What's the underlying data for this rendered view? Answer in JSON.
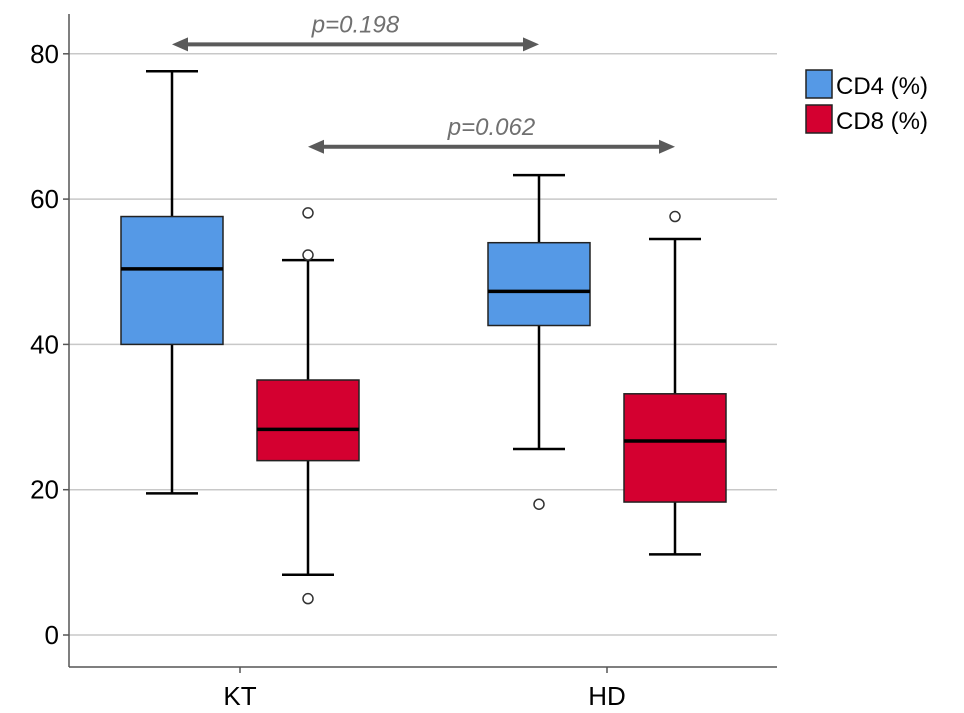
{
  "chart_data": {
    "type": "box",
    "categories": [
      "KT",
      "HD"
    ],
    "ylim": [
      -4,
      86
    ],
    "yticks": [
      0,
      20,
      40,
      60,
      80
    ],
    "grid": true,
    "legend_position": "top-right",
    "series": [
      {
        "name": "CD4 (%)",
        "color": "#5599e6",
        "boxes": [
          {
            "category": "KT",
            "whisker_low": 19.5,
            "q1": 40.0,
            "median": 50.4,
            "q3": 57.6,
            "whisker_high": 77.6,
            "outliers": []
          },
          {
            "category": "HD",
            "whisker_low": 25.6,
            "q1": 42.6,
            "median": 47.3,
            "q3": 54.0,
            "whisker_high": 63.3,
            "outliers": [
              18.0
            ]
          }
        ]
      },
      {
        "name": "CD8 (%)",
        "color": "#d40030",
        "boxes": [
          {
            "category": "KT",
            "whisker_low": 8.3,
            "q1": 24.0,
            "median": 28.3,
            "q3": 35.1,
            "whisker_high": 51.6,
            "outliers": [
              5.0,
              52.3,
              58.1
            ]
          },
          {
            "category": "HD",
            "whisker_low": 11.1,
            "q1": 18.3,
            "median": 26.7,
            "q3": 33.2,
            "whisker_high": 54.5,
            "outliers": [
              57.6
            ]
          }
        ]
      }
    ],
    "annotations": [
      {
        "text": "p=0.198",
        "from": "KT CD4 (%)",
        "to": "HD CD4 (%)",
        "y": 81.3
      },
      {
        "text": "p=0.062",
        "from": "KT CD8 (%)",
        "to": "HD CD8 (%)",
        "y": 67.2
      }
    ]
  }
}
